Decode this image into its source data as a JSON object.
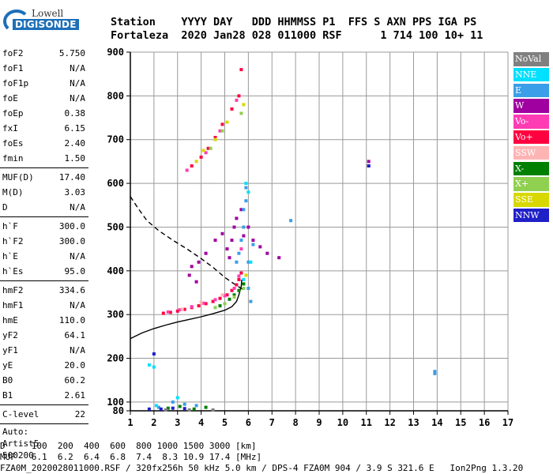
{
  "logo": {
    "brand": "Lowell",
    "product": "DIGISONDE"
  },
  "header": {
    "line1": "Station    YYYY DAY   DDD HHMMSS P1  FFS S AXN PPS IGA PS",
    "line2": "Fortaleza  2020 Jan28 028 011000 RSF      1 714 100 10+ 11"
  },
  "params": {
    "group1": [
      {
        "k": "foF2",
        "v": "5.750"
      },
      {
        "k": "foF1",
        "v": "N/A"
      },
      {
        "k": "foF1p",
        "v": "N/A"
      },
      {
        "k": "foE",
        "v": "N/A"
      },
      {
        "k": "foEp",
        "v": "0.38"
      },
      {
        "k": "fxI",
        "v": "6.15"
      },
      {
        "k": "foEs",
        "v": "2.40"
      },
      {
        "k": "fmin",
        "v": "1.50"
      }
    ],
    "group2": [
      {
        "k": "MUF(D)",
        "v": "17.40"
      },
      {
        "k": "M(D)",
        "v": "3.03"
      },
      {
        "k": "D",
        "v": "N/A"
      }
    ],
    "group3": [
      {
        "k": "h`F",
        "v": "300.0"
      },
      {
        "k": "h`F2",
        "v": "300.0"
      },
      {
        "k": "h`E",
        "v": "N/A"
      },
      {
        "k": "h`Es",
        "v": "95.0"
      }
    ],
    "group4": [
      {
        "k": "hmF2",
        "v": "334.6"
      },
      {
        "k": "hmF1",
        "v": "N/A"
      },
      {
        "k": "hmE",
        "v": "110.0"
      },
      {
        "k": "yF2",
        "v": "64.1"
      },
      {
        "k": "yF1",
        "v": "N/A"
      },
      {
        "k": "yE",
        "v": "20.0"
      },
      {
        "k": "B0",
        "v": "60.2"
      },
      {
        "k": "B1",
        "v": "2.61"
      }
    ],
    "group5": [
      {
        "k": "C-level",
        "v": "22"
      }
    ],
    "misc": [
      "Auto:",
      "Artist5",
      "500200"
    ]
  },
  "legend": [
    {
      "label": "NoVal",
      "color": "#808080"
    },
    {
      "label": "NNE",
      "color": "#00e0ff"
    },
    {
      "label": "E",
      "color": "#3a9ee8"
    },
    {
      "label": "W",
      "color": "#a000a0"
    },
    {
      "label": "Vo-",
      "color": "#ff3cb4"
    },
    {
      "label": "Vo+",
      "color": "#ff0040"
    },
    {
      "label": "SSW",
      "color": "#ffb4b4"
    },
    {
      "label": "X-",
      "color": "#008000"
    },
    {
      "label": "X+",
      "color": "#90d050"
    },
    {
      "label": "SSE",
      "color": "#d8d800"
    },
    {
      "label": "NNW",
      "color": "#2020c8"
    }
  ],
  "footer": {
    "line1": "D     100  200  400  600  800 1000 1500 3000 [km]",
    "line2": "MUF   6.1  6.2  6.4  6.8  7.4  8.3 10.9 17.4 [MHz]",
    "line3": "FZA0M_2020028011000.RSF / 320fx256h 50 kHz 5.0 km / DPS-4 FZA0M 904 / 3.9 S 321.6 E   Ion2Png 1.3.20"
  },
  "chart_data": {
    "type": "scatter",
    "title": "",
    "xlabel": "",
    "ylabel": "",
    "xlim": [
      1,
      17
    ],
    "ylim": [
      80,
      900
    ],
    "x_ticks": [
      1,
      2,
      3,
      4,
      5,
      6,
      7,
      8,
      9,
      10,
      11,
      12,
      13,
      14,
      15,
      16,
      17
    ],
    "y_ticks": [
      100,
      200,
      300,
      400,
      500,
      600,
      700,
      800,
      900
    ],
    "y_tick_extra": [
      80
    ],
    "grid": true,
    "series": [
      {
        "name": "Vo+",
        "color": "#ff0040",
        "points": [
          [
            2.4,
            303
          ],
          [
            2.7,
            305
          ],
          [
            3.0,
            308
          ],
          [
            3.3,
            312
          ],
          [
            3.6,
            316
          ],
          [
            3.9,
            320
          ],
          [
            4.2,
            325
          ],
          [
            4.5,
            330
          ],
          [
            4.8,
            337
          ],
          [
            5.1,
            345
          ],
          [
            5.3,
            355
          ],
          [
            5.5,
            368
          ],
          [
            5.6,
            380
          ],
          [
            5.7,
            395
          ],
          [
            3.6,
            640
          ],
          [
            4.0,
            660
          ],
          [
            4.3,
            680
          ],
          [
            4.6,
            705
          ],
          [
            4.9,
            735
          ],
          [
            5.3,
            770
          ],
          [
            5.6,
            800
          ],
          [
            5.7,
            860
          ]
        ]
      },
      {
        "name": "Vo-",
        "color": "#ff3cb4",
        "points": [
          [
            2.6,
            306
          ],
          [
            3.1,
            311
          ],
          [
            3.6,
            318
          ],
          [
            4.1,
            326
          ],
          [
            4.6,
            334
          ],
          [
            5.0,
            343
          ],
          [
            5.4,
            360
          ],
          [
            5.6,
            388
          ],
          [
            5.7,
            450
          ],
          [
            3.4,
            630
          ],
          [
            4.2,
            670
          ],
          [
            4.8,
            720
          ],
          [
            5.5,
            790
          ]
        ]
      },
      {
        "name": "W",
        "color": "#a000a0",
        "points": [
          [
            3.5,
            390
          ],
          [
            3.6,
            410
          ],
          [
            3.8,
            375
          ],
          [
            3.9,
            420
          ],
          [
            4.2,
            440
          ],
          [
            4.6,
            470
          ],
          [
            4.9,
            485
          ],
          [
            5.1,
            450
          ],
          [
            5.2,
            430
          ],
          [
            5.3,
            470
          ],
          [
            5.4,
            500
          ],
          [
            5.5,
            520
          ],
          [
            5.7,
            540
          ],
          [
            5.8,
            480
          ],
          [
            6.0,
            500
          ],
          [
            6.2,
            470
          ],
          [
            6.5,
            455
          ],
          [
            6.8,
            440
          ],
          [
            7.3,
            430
          ],
          [
            11.1,
            640
          ],
          [
            11.1,
            650
          ]
        ]
      },
      {
        "name": "E",
        "color": "#3a9ee8",
        "points": [
          [
            5.6,
            440
          ],
          [
            5.7,
            470
          ],
          [
            5.8,
            500
          ],
          [
            5.8,
            540
          ],
          [
            5.9,
            560
          ],
          [
            5.9,
            590
          ],
          [
            6.0,
            420
          ],
          [
            6.0,
            360
          ],
          [
            6.1,
            330
          ],
          [
            6.2,
            460
          ],
          [
            5.5,
            420
          ],
          [
            2.2,
            88
          ],
          [
            2.8,
            100
          ],
          [
            3.3,
            95
          ],
          [
            3.8,
            92
          ],
          [
            13.9,
            165
          ],
          [
            13.9,
            170
          ],
          [
            7.8,
            515
          ]
        ]
      },
      {
        "name": "NNE",
        "color": "#00e0ff",
        "points": [
          [
            5.9,
            600
          ],
          [
            6.0,
            580
          ],
          [
            5.8,
            380
          ],
          [
            6.1,
            420
          ],
          [
            3.0,
            110
          ],
          [
            2.1,
            92
          ],
          [
            1.8,
            185
          ],
          [
            2.0,
            180
          ]
        ]
      },
      {
        "name": "X-",
        "color": "#008000",
        "points": [
          [
            4.8,
            320
          ],
          [
            5.2,
            335
          ],
          [
            5.4,
            345
          ],
          [
            5.6,
            355
          ],
          [
            5.8,
            370
          ],
          [
            2.6,
            86
          ],
          [
            3.1,
            90
          ],
          [
            3.7,
            84
          ],
          [
            4.2,
            88
          ]
        ]
      },
      {
        "name": "X+",
        "color": "#90d050",
        "points": [
          [
            4.6,
            316
          ],
          [
            5.0,
            325
          ],
          [
            5.4,
            340
          ],
          [
            5.8,
            360
          ],
          [
            4.4,
            680
          ],
          [
            4.9,
            720
          ],
          [
            5.7,
            760
          ]
        ]
      },
      {
        "name": "SSE",
        "color": "#d8d800",
        "points": [
          [
            3.8,
            650
          ],
          [
            4.1,
            675
          ],
          [
            4.6,
            700
          ],
          [
            5.1,
            740
          ],
          [
            5.8,
            780
          ],
          [
            5.9,
            390
          ]
        ]
      },
      {
        "name": "NNW",
        "color": "#2020c8",
        "points": [
          [
            1.8,
            84
          ],
          [
            2.3,
            84
          ],
          [
            2.8,
            86
          ],
          [
            3.3,
            85
          ],
          [
            11.1,
            640
          ],
          [
            2.0,
            210
          ]
        ]
      },
      {
        "name": "SSW",
        "color": "#ffb4b4",
        "points": [
          [
            3.2,
            312
          ],
          [
            4.0,
            328
          ],
          [
            4.9,
            345
          ]
        ]
      },
      {
        "name": "NoVal",
        "color": "#808080",
        "points": [
          [
            2.5,
            82
          ],
          [
            3.5,
            82
          ],
          [
            4.5,
            82
          ]
        ]
      }
    ],
    "lines": [
      {
        "style": "solid",
        "color": "#000",
        "points": [
          [
            1,
            245
          ],
          [
            1.5,
            258
          ],
          [
            2.0,
            268
          ],
          [
            2.5,
            276
          ],
          [
            3.0,
            283
          ],
          [
            3.5,
            289
          ],
          [
            4.0,
            295
          ],
          [
            4.5,
            302
          ],
          [
            5.0,
            310
          ],
          [
            5.3,
            318
          ],
          [
            5.5,
            330
          ],
          [
            5.6,
            345
          ],
          [
            5.7,
            365
          ],
          [
            5.72,
            380
          ]
        ]
      },
      {
        "style": "dashed",
        "color": "#000",
        "points": [
          [
            1,
            570
          ],
          [
            1.3,
            545
          ],
          [
            1.7,
            515
          ],
          [
            2.2,
            492
          ],
          [
            2.8,
            470
          ],
          [
            3.4,
            450
          ],
          [
            4.0,
            428
          ],
          [
            4.5,
            408
          ],
          [
            5.0,
            385
          ],
          [
            5.4,
            370
          ],
          [
            5.75,
            358
          ]
        ]
      }
    ]
  }
}
